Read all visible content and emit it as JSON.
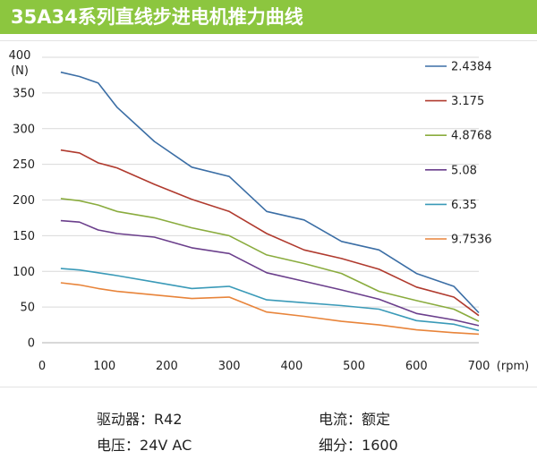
{
  "header": {
    "title": "35A34系列直线步进电机推力曲线"
  },
  "chart_data": {
    "type": "line",
    "ylabel_top": "400",
    "ylabel_unit": "(N)",
    "xlabel_unit": "(rpm)",
    "xlim": [
      0,
      700
    ],
    "ylim": [
      0,
      400
    ],
    "x_ticks": [
      0,
      100,
      200,
      300,
      400,
      500,
      600,
      700
    ],
    "y_ticks": [
      0,
      50,
      100,
      150,
      200,
      250,
      300,
      350,
      400
    ],
    "y_tick_labels": [
      "0",
      "50",
      "100",
      "150",
      "200",
      "250",
      "300",
      "350",
      ""
    ],
    "grid": "horizontal",
    "legend_position": "right",
    "x": [
      30,
      60,
      90,
      120,
      180,
      240,
      300,
      360,
      420,
      480,
      540,
      600,
      660,
      700
    ],
    "series": [
      {
        "name": "2.4384",
        "color": "#3b6ea5",
        "values": [
          379,
          373,
          364,
          330,
          282,
          246,
          233,
          184,
          172,
          142,
          130,
          97,
          79,
          42
        ]
      },
      {
        "name": "3.175",
        "color": "#b03a2e",
        "values": [
          270,
          266,
          252,
          245,
          222,
          201,
          184,
          153,
          130,
          118,
          103,
          78,
          64,
          38
        ]
      },
      {
        "name": "4.8768",
        "color": "#8aac3e",
        "values": [
          202,
          199,
          193,
          184,
          175,
          161,
          150,
          123,
          111,
          97,
          72,
          59,
          47,
          30
        ]
      },
      {
        "name": "5.08",
        "color": "#6b3f8c",
        "values": [
          171,
          169,
          158,
          153,
          148,
          133,
          125,
          98,
          86,
          74,
          61,
          41,
          32,
          24
        ]
      },
      {
        "name": "6.35",
        "color": "#3a9ab8",
        "values": [
          104,
          102,
          98,
          94,
          85,
          76,
          79,
          60,
          56,
          52,
          47,
          31,
          26,
          17
        ]
      },
      {
        "name": "9.7536",
        "color": "#e8843a",
        "values": [
          84,
          81,
          76,
          72,
          67,
          62,
          64,
          43,
          37,
          30,
          25,
          18,
          14,
          12
        ]
      }
    ]
  },
  "specs": {
    "driver_label": "驱动器：",
    "driver_value": "R42",
    "current_label": "电流：",
    "current_value": "额定",
    "voltage_label": "电压：",
    "voltage_value": "24V AC",
    "microstep_label": "细分：",
    "microstep_value": "1600"
  }
}
